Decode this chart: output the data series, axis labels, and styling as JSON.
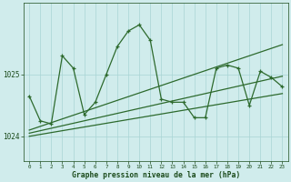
{
  "x": [
    0,
    1,
    2,
    3,
    4,
    5,
    6,
    7,
    8,
    9,
    10,
    11,
    12,
    13,
    14,
    15,
    16,
    17,
    18,
    19,
    20,
    21,
    22,
    23
  ],
  "y_main": [
    1024.65,
    1024.25,
    1024.2,
    1025.3,
    1025.1,
    1024.35,
    1024.55,
    1025.0,
    1025.45,
    1025.7,
    1025.8,
    1025.55,
    1024.6,
    1024.55,
    1024.55,
    1024.3,
    1024.3,
    1025.1,
    1025.15,
    1025.1,
    1024.5,
    1025.05,
    1024.95,
    1024.8
  ],
  "trend_low": [
    1024.0,
    1024.03,
    1024.06,
    1024.09,
    1024.12,
    1024.15,
    1024.18,
    1024.21,
    1024.24,
    1024.27,
    1024.3,
    1024.33,
    1024.36,
    1024.39,
    1024.42,
    1024.45,
    1024.48,
    1024.51,
    1024.54,
    1024.57,
    1024.6,
    1024.63,
    1024.66,
    1024.69
  ],
  "trend_mid": [
    1024.05,
    1024.09,
    1024.13,
    1024.17,
    1024.21,
    1024.25,
    1024.29,
    1024.33,
    1024.37,
    1024.41,
    1024.45,
    1024.49,
    1024.53,
    1024.57,
    1024.61,
    1024.65,
    1024.69,
    1024.73,
    1024.77,
    1024.81,
    1024.85,
    1024.89,
    1024.93,
    1024.97
  ],
  "trend_high": [
    1024.1,
    1024.16,
    1024.22,
    1024.28,
    1024.34,
    1024.4,
    1024.46,
    1024.52,
    1024.58,
    1024.64,
    1024.7,
    1024.76,
    1024.82,
    1024.88,
    1024.94,
    1025.0,
    1025.06,
    1025.12,
    1025.18,
    1025.24,
    1025.3,
    1025.36,
    1025.42,
    1025.48
  ],
  "line_color": "#2d6a2d",
  "bg_color": "#d0ecec",
  "grid_color": "#a8d4d4",
  "text_color": "#1a4a1a",
  "xlabel": "Graphe pression niveau de la mer (hPa)",
  "yticks": [
    1024,
    1025
  ],
  "ylim": [
    1023.6,
    1026.15
  ],
  "xlim": [
    -0.5,
    23.5
  ]
}
